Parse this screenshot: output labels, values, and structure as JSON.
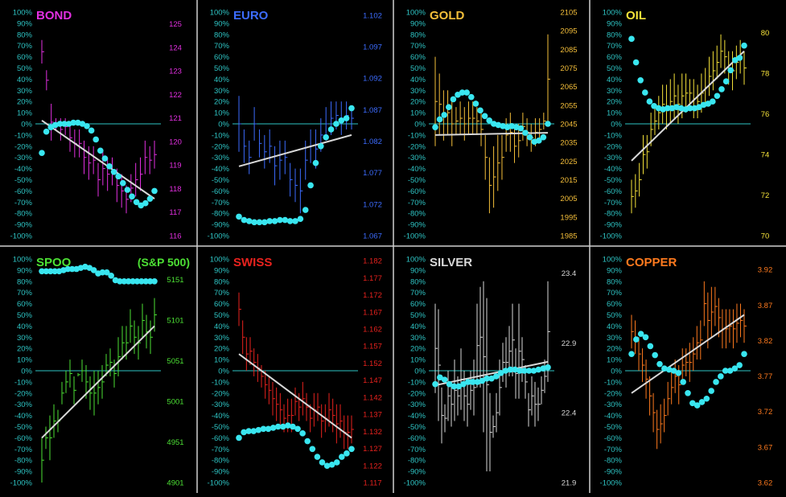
{
  "colors": {
    "background": "#000000",
    "divider": "#cfcfcf",
    "zeroline": "#2ec4c4",
    "pct_axis": "#2ec4c4",
    "dots": "#39e6f0",
    "trend": "#d8d8d8"
  },
  "pct_ticks": [
    "100%",
    "90%",
    "80%",
    "70%",
    "60%",
    "50%",
    "40%",
    "30%",
    "20%",
    "10%",
    "0%",
    "-10%",
    "-20%",
    "-30%",
    "-40%",
    "-50%",
    "-60%",
    "-70%",
    "-80%",
    "-90%",
    "-100%"
  ],
  "chart_data": [
    {
      "type": "bar",
      "name": "BOND",
      "color": "#e22fe0",
      "price_ticks": [
        "125",
        "124",
        "123",
        "122",
        "121",
        "120",
        "119",
        "118",
        "117",
        "116"
      ],
      "price_range": [
        116,
        125.5
      ],
      "bars": [
        [
          54,
          75
        ],
        [
          30,
          48
        ],
        [
          -15,
          18
        ],
        [
          -5,
          5
        ],
        [
          -15,
          5
        ],
        [
          -10,
          5
        ],
        [
          -25,
          0
        ],
        [
          -30,
          -5
        ],
        [
          -30,
          -5
        ],
        [
          -45,
          -15
        ],
        [
          -50,
          -20
        ],
        [
          -45,
          -20
        ],
        [
          -65,
          -35
        ],
        [
          -55,
          -25
        ],
        [
          -60,
          -30
        ],
        [
          -55,
          -30
        ],
        [
          -70,
          -40
        ],
        [
          -75,
          -45
        ],
        [
          -80,
          -55
        ],
        [
          -70,
          -45
        ],
        [
          -65,
          -35
        ],
        [
          -60,
          -30
        ],
        [
          -45,
          -15
        ],
        [
          -45,
          -20
        ],
        [
          -40,
          -15
        ]
      ],
      "mfi": [
        -26,
        -7,
        -3,
        -1,
        0,
        0,
        0,
        1,
        1,
        0,
        -2,
        -6,
        -14,
        -24,
        -31,
        -38,
        -43,
        -47,
        -53,
        -59,
        -65,
        -70,
        -73,
        -71,
        -67,
        -60
      ],
      "trend": [
        3,
        -67
      ]
    },
    {
      "type": "bar",
      "name": "EURO",
      "color": "#3c6cff",
      "price_ticks": [
        "1.102",
        "1.097",
        "1.092",
        "1.087",
        "1.082",
        "1.077",
        "1.072",
        "1.067"
      ],
      "price_range": [
        1.067,
        1.1025
      ],
      "bars": [
        [
          -25,
          25
        ],
        [
          -35,
          -5
        ],
        [
          -45,
          -15
        ],
        [
          -15,
          15
        ],
        [
          -30,
          -5
        ],
        [
          -40,
          -10
        ],
        [
          -35,
          -5
        ],
        [
          -55,
          -20
        ],
        [
          -50,
          -15
        ],
        [
          -45,
          -15
        ],
        [
          -65,
          -35
        ],
        [
          -70,
          -40
        ],
        [
          -80,
          -40
        ],
        [
          -50,
          -15
        ],
        [
          -35,
          -5
        ],
        [
          -40,
          -5
        ],
        [
          -25,
          5
        ],
        [
          -15,
          15
        ],
        [
          -10,
          20
        ],
        [
          -5,
          20
        ],
        [
          -10,
          20
        ],
        [
          -5,
          20
        ],
        [
          -5,
          15
        ]
      ],
      "mfi": [
        -83,
        -86,
        -87,
        -88,
        -88,
        -88,
        -87,
        -87,
        -86,
        -86,
        -87,
        -87,
        -85,
        -77,
        -55,
        -35,
        -20,
        -12,
        -5,
        0,
        3,
        5,
        14
      ],
      "trend": [
        -38,
        -10
      ]
    },
    {
      "type": "bar",
      "name": "GOLD",
      "color": "#f5bf3a",
      "price_ticks": [
        "2105",
        "2095",
        "2085",
        "2075",
        "2065",
        "2055",
        "2045",
        "2035",
        "2025",
        "2015",
        "2005",
        "1995",
        "1985"
      ],
      "price_range": [
        1985,
        2105
      ],
      "bars": [
        [
          -20,
          60
        ],
        [
          -10,
          45
        ],
        [
          -15,
          30
        ],
        [
          -10,
          30
        ],
        [
          -20,
          20
        ],
        [
          -10,
          15
        ],
        [
          -10,
          20
        ],
        [
          -15,
          15
        ],
        [
          -10,
          20
        ],
        [
          -10,
          20
        ],
        [
          -10,
          15
        ],
        [
          -20,
          10
        ],
        [
          -50,
          -10
        ],
        [
          -80,
          -30
        ],
        [
          -75,
          -20
        ],
        [
          -60,
          -10
        ],
        [
          -50,
          -10
        ],
        [
          -25,
          5
        ],
        [
          -25,
          10
        ],
        [
          -35,
          -5
        ],
        [
          -30,
          0
        ],
        [
          -15,
          10
        ],
        [
          -20,
          5
        ],
        [
          -25,
          0
        ],
        [
          -20,
          5
        ],
        [
          -15,
          5
        ],
        [
          -5,
          10
        ],
        [
          0,
          80
        ]
      ],
      "mfi": [
        -3,
        4,
        8,
        15,
        22,
        26,
        28,
        28,
        24,
        18,
        12,
        7,
        3,
        0,
        -1,
        -2,
        -3,
        -2,
        -3,
        -4,
        -8,
        -12,
        -16,
        -15,
        -12,
        0
      ],
      "trend": [
        -10,
        -8
      ]
    },
    {
      "type": "bar",
      "name": "OIL",
      "color": "#f5e23a",
      "price_ticks": [
        "80",
        "78",
        "76",
        "74",
        "72",
        "70"
      ],
      "price_range": [
        70,
        81
      ],
      "bars": [
        [
          -80,
          -50
        ],
        [
          -75,
          -45
        ],
        [
          -65,
          -35
        ],
        [
          -45,
          -10
        ],
        [
          -40,
          -10
        ],
        [
          -20,
          10
        ],
        [
          -10,
          15
        ],
        [
          -5,
          25
        ],
        [
          0,
          35
        ],
        [
          -5,
          35
        ],
        [
          0,
          40
        ],
        [
          5,
          45
        ],
        [
          0,
          35
        ],
        [
          5,
          45
        ],
        [
          10,
          45
        ],
        [
          15,
          40
        ],
        [
          5,
          40
        ],
        [
          5,
          35
        ],
        [
          10,
          45
        ],
        [
          15,
          50
        ],
        [
          25,
          60
        ],
        [
          30,
          65
        ],
        [
          40,
          70
        ],
        [
          50,
          80
        ],
        [
          45,
          75
        ],
        [
          35,
          65
        ],
        [
          30,
          65
        ],
        [
          40,
          70
        ],
        [
          45,
          75
        ],
        [
          35,
          65
        ]
      ],
      "mfi": [
        76,
        55,
        39,
        28,
        20,
        16,
        14,
        13,
        14,
        14,
        15,
        14,
        13,
        14,
        14,
        15,
        17,
        18,
        20,
        25,
        31,
        38,
        48,
        57,
        59,
        70
      ],
      "trend": [
        -33,
        65
      ]
    },
    {
      "type": "bar",
      "name": "SPOO",
      "subtitle": "(S&P 500)",
      "color": "#4ce034",
      "subtitle_color": "#4ce034",
      "price_ticks": [
        "5151",
        "5101",
        "5051",
        "5001",
        "4951",
        "4901"
      ],
      "price_range": [
        4901,
        5176
      ],
      "bars": [
        [
          -100,
          -60
        ],
        [
          -70,
          -50
        ],
        [
          -80,
          -40
        ],
        [
          -60,
          -30
        ],
        [
          -55,
          -35
        ],
        [
          -30,
          -10
        ],
        [
          -20,
          0
        ],
        [
          -15,
          10
        ],
        [
          -30,
          -5
        ],
        [
          -5,
          -2
        ],
        [
          -10,
          10
        ],
        [
          -25,
          5
        ],
        [
          -35,
          -5
        ],
        [
          -40,
          0
        ],
        [
          -30,
          0
        ],
        [
          -25,
          5
        ],
        [
          -5,
          15
        ],
        [
          -5,
          20
        ],
        [
          -15,
          10
        ],
        [
          -5,
          30
        ],
        [
          10,
          40
        ],
        [
          10,
          40
        ],
        [
          25,
          55
        ],
        [
          15,
          45
        ],
        [
          10,
          40
        ],
        [
          30,
          60
        ],
        [
          20,
          50
        ],
        [
          15,
          45
        ],
        [
          35,
          65
        ]
      ],
      "mfi": [
        89,
        89,
        89,
        89,
        89,
        90,
        91,
        91,
        91,
        92,
        93,
        92,
        90,
        87,
        88,
        88,
        85,
        81,
        80,
        80,
        80,
        80,
        80,
        80,
        80,
        80,
        80
      ],
      "trend": [
        -60,
        40
      ]
    },
    {
      "type": "bar",
      "name": "SWISS",
      "color": "#e8221e",
      "price_ticks": [
        "1.182",
        "1.177",
        "1.172",
        "1.167",
        "1.162",
        "1.157",
        "1.152",
        "1.147",
        "1.142",
        "1.137",
        "1.132",
        "1.127",
        "1.122",
        "1.117"
      ],
      "price_range": [
        1.117,
        1.1825
      ],
      "bars": [
        [
          40,
          70
        ],
        [
          15,
          45
        ],
        [
          0,
          30
        ],
        [
          5,
          30
        ],
        [
          -5,
          20
        ],
        [
          -10,
          15
        ],
        [
          -15,
          5
        ],
        [
          -25,
          0
        ],
        [
          -30,
          -5
        ],
        [
          -40,
          -10
        ],
        [
          -45,
          -15
        ],
        [
          -50,
          -20
        ],
        [
          -55,
          -30
        ],
        [
          -55,
          -25
        ],
        [
          -55,
          -25
        ],
        [
          -40,
          -15
        ],
        [
          -45,
          -20
        ],
        [
          -40,
          -10
        ],
        [
          -45,
          -20
        ],
        [
          -55,
          -30
        ],
        [
          -50,
          -20
        ],
        [
          -45,
          -20
        ],
        [
          -60,
          -30
        ],
        [
          -55,
          -30
        ],
        [
          -50,
          -20
        ],
        [
          -55,
          -25
        ],
        [
          -65,
          -30
        ],
        [
          -60,
          -30
        ],
        [
          -70,
          -40
        ],
        [
          -70,
          -40
        ],
        [
          -65,
          -40
        ]
      ],
      "mfi": [
        -60,
        -55,
        -54,
        -54,
        -53,
        -52,
        -52,
        -51,
        -50,
        -50,
        -49,
        -50,
        -52,
        -56,
        -63,
        -70,
        -77,
        -82,
        -85,
        -84,
        -82,
        -77,
        -74,
        -70
      ],
      "trend": [
        15,
        -60
      ]
    },
    {
      "type": "bar",
      "name": "SILVER",
      "color": "#d8d8d8",
      "price_ticks": [
        "23.4",
        "22.9",
        "22.4",
        "21.9"
      ],
      "price_range": [
        21.9,
        23.5
      ],
      "bars": [
        [
          -20,
          60
        ],
        [
          -45,
          55
        ],
        [
          -65,
          -15
        ],
        [
          -55,
          -30
        ],
        [
          -45,
          0
        ],
        [
          -50,
          -10
        ],
        [
          -45,
          10
        ],
        [
          -40,
          -5
        ],
        [
          -35,
          20
        ],
        [
          -45,
          0
        ],
        [
          -50,
          -10
        ],
        [
          -35,
          0
        ],
        [
          -40,
          10
        ],
        [
          -15,
          60
        ],
        [
          -15,
          75
        ],
        [
          -55,
          80
        ],
        [
          -90,
          65
        ],
        [
          -90,
          -20
        ],
        [
          -60,
          -40
        ],
        [
          -55,
          -20
        ],
        [
          -40,
          10
        ],
        [
          -10,
          25
        ],
        [
          -15,
          30
        ],
        [
          -5,
          40
        ],
        [
          -5,
          60
        ],
        [
          -25,
          20
        ],
        [
          -25,
          60
        ],
        [
          -10,
          30
        ],
        [
          -25,
          5
        ],
        [
          -50,
          -20
        ],
        [
          -40,
          -5
        ],
        [
          -50,
          -10
        ],
        [
          -45,
          -15
        ],
        [
          -30,
          -5
        ],
        [
          -20,
          10
        ],
        [
          -10,
          80
        ]
      ],
      "mfi": [
        -12,
        -6,
        -8,
        -12,
        -14,
        -14,
        -12,
        -10,
        -10,
        -10,
        -9,
        -7,
        -7,
        -5,
        -2,
        0,
        1,
        1,
        0,
        0,
        0,
        0,
        1,
        2,
        3
      ],
      "trend": [
        -13,
        8
      ]
    },
    {
      "type": "bar",
      "name": "COPPER",
      "color": "#ff7a1e",
      "price_ticks": [
        "3.92",
        "3.87",
        "3.82",
        "3.77",
        "3.72",
        "3.67",
        "3.62"
      ],
      "price_range": [
        3.62,
        3.935
      ],
      "bars": [
        [
          20,
          50
        ],
        [
          15,
          45
        ],
        [
          0,
          30
        ],
        [
          -10,
          20
        ],
        [
          -25,
          10
        ],
        [
          -40,
          -5
        ],
        [
          -55,
          -20
        ],
        [
          -70,
          -35
        ],
        [
          -65,
          -30
        ],
        [
          -55,
          -25
        ],
        [
          -40,
          -10
        ],
        [
          -30,
          0
        ],
        [
          -20,
          10
        ],
        [
          -30,
          5
        ],
        [
          -10,
          20
        ],
        [
          -5,
          20
        ],
        [
          -10,
          25
        ],
        [
          0,
          30
        ],
        [
          10,
          40
        ],
        [
          10,
          45
        ],
        [
          40,
          80
        ],
        [
          20,
          70
        ],
        [
          30,
          75
        ],
        [
          40,
          75
        ],
        [
          30,
          65
        ],
        [
          20,
          55
        ],
        [
          20,
          55
        ],
        [
          25,
          55
        ],
        [
          20,
          55
        ],
        [
          25,
          60
        ],
        [
          30,
          60
        ],
        [
          25,
          55
        ]
      ],
      "mfi": [
        15,
        28,
        33,
        30,
        22,
        14,
        6,
        2,
        1,
        0,
        -2,
        -10,
        -20,
        -29,
        -31,
        -28,
        -25,
        -18,
        -10,
        -5,
        0,
        0,
        2,
        5,
        15
      ],
      "trend": [
        -20,
        50
      ]
    }
  ]
}
